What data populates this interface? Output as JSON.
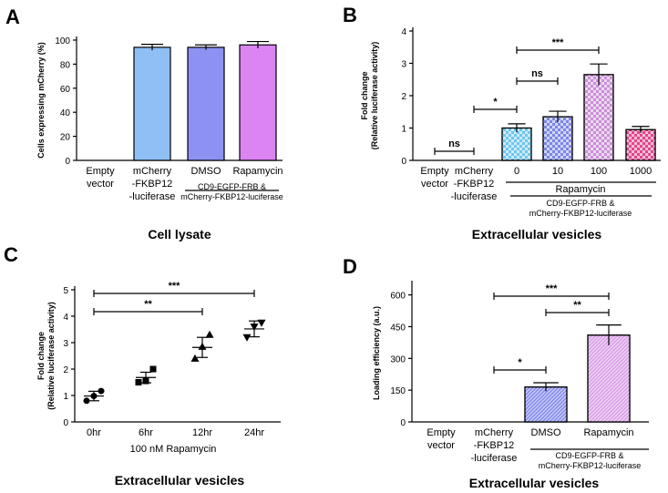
{
  "chart_data": [
    {
      "panel": "A",
      "type": "bar",
      "title": "Cell lysate",
      "ylabel": "Cells expressing mCherry (%)",
      "ylim": [
        0,
        100
      ],
      "yticks": [
        0,
        20,
        40,
        60,
        80,
        100
      ],
      "categories": [
        {
          "lines": [
            "Empty",
            "vector"
          ],
          "value": 0,
          "error": 0,
          "color": "#ffffff"
        },
        {
          "lines": [
            "mCherry",
            "-FKBP12",
            "-luciferase"
          ],
          "value": 94,
          "error": 2.5,
          "color": "#8fbff5"
        },
        {
          "lines": [
            "DMSO"
          ],
          "value": 94,
          "error": 2,
          "color": "#8d91f2"
        },
        {
          "lines": [
            "Rapamycin"
          ],
          "value": 96,
          "error": 2.8,
          "color": "#db84f2"
        }
      ],
      "group_label": [
        "CD9-EGFP-FRB &",
        "mCherry-FKBP12-luciferase"
      ]
    },
    {
      "panel": "B",
      "type": "bar",
      "title": "Extracellular vesicles",
      "ylabel": [
        "Fold change",
        "(Relative luciferase activity)"
      ],
      "ylim": [
        0,
        4
      ],
      "yticks": [
        0,
        1,
        2,
        3,
        4
      ],
      "categories": [
        {
          "lines": [
            "Empty",
            "vector"
          ],
          "value": 0,
          "error": 0,
          "color": "#ffffff"
        },
        {
          "lines": [
            "mCherry",
            "-FKBP12",
            "-luciferase"
          ],
          "value": 0,
          "error": 0,
          "color": "#ffffff"
        },
        {
          "lines": [
            "0"
          ],
          "value": 1.0,
          "error": 0.13,
          "color": "#6fc6ee"
        },
        {
          "lines": [
            "10"
          ],
          "value": 1.35,
          "error": 0.17,
          "color": "#7b86e8"
        },
        {
          "lines": [
            "100"
          ],
          "value": 2.65,
          "error": 0.33,
          "color": "#c98fd6"
        },
        {
          "lines": [
            "1000"
          ],
          "value": 0.95,
          "error": 0.1,
          "color": "#e2458b"
        }
      ],
      "group_header": "Rapamycin",
      "group_label": [
        "CD9-EGFP-FRB &",
        "mCherry-FKBP12-luciferase"
      ],
      "significance": [
        {
          "from": 0,
          "to": 1,
          "label": "ns"
        },
        {
          "from": 1,
          "to": 2,
          "label": "*"
        },
        {
          "from": 2,
          "to": 3,
          "label": "ns"
        },
        {
          "from": 2,
          "to": 4,
          "label": "***"
        }
      ]
    },
    {
      "panel": "C",
      "type": "scatter",
      "title": "Extracellular vesicles",
      "ylabel": [
        "Fold change",
        "(Relative luciferase activity)"
      ],
      "xlabel": "100 nM Rapamycin",
      "ylim": [
        0,
        5
      ],
      "yticks": [
        0,
        1,
        2,
        3,
        4,
        5
      ],
      "groups": [
        {
          "label": "0hr",
          "marker": "circle",
          "points": [
            0.8,
            0.98,
            1.17
          ],
          "mean": 0.98,
          "error": 0.18
        },
        {
          "label": "6hr",
          "marker": "square",
          "points": [
            1.5,
            1.55,
            2.0
          ],
          "mean": 1.68,
          "error": 0.2
        },
        {
          "label": "12hr",
          "marker": "triangle",
          "points": [
            2.4,
            2.85,
            3.3
          ],
          "mean": 2.82,
          "error": 0.38
        },
        {
          "label": "24hr",
          "marker": "inverted-triangle",
          "points": [
            3.2,
            3.6,
            3.75
          ],
          "mean": 3.52,
          "error": 0.3
        }
      ],
      "significance": [
        {
          "from": 0,
          "to": 2,
          "label": "**"
        },
        {
          "from": 0,
          "to": 3,
          "label": "***"
        }
      ]
    },
    {
      "panel": "D",
      "type": "bar",
      "title": "Extracellular vesicles",
      "ylabel": "Loading efficiency (a.u.)",
      "ylim": [
        0,
        650
      ],
      "yticks": [
        0,
        150,
        300,
        450,
        600
      ],
      "categories": [
        {
          "lines": [
            "Empty",
            "vector"
          ],
          "value": 0,
          "error": 0,
          "color": "#ffffff"
        },
        {
          "lines": [
            "mCherry",
            "-FKBP12",
            "-luciferase"
          ],
          "value": 0,
          "error": 0,
          "color": "#ffffff"
        },
        {
          "lines": [
            "DMSO"
          ],
          "value": 165,
          "error": 20,
          "color": "#8c92ee"
        },
        {
          "lines": [
            "Rapamycin"
          ],
          "value": 410,
          "error": 48,
          "color": "#dba3e8"
        }
      ],
      "group_label": [
        "CD9-EGFP-FRB &",
        "mCherry-FKBP12-luciferase"
      ],
      "significance": [
        {
          "from": 1,
          "to": 2,
          "label": "*"
        },
        {
          "from": 2,
          "to": 3,
          "label": "**"
        },
        {
          "from": 1,
          "to": 3,
          "label": "***"
        }
      ]
    }
  ]
}
